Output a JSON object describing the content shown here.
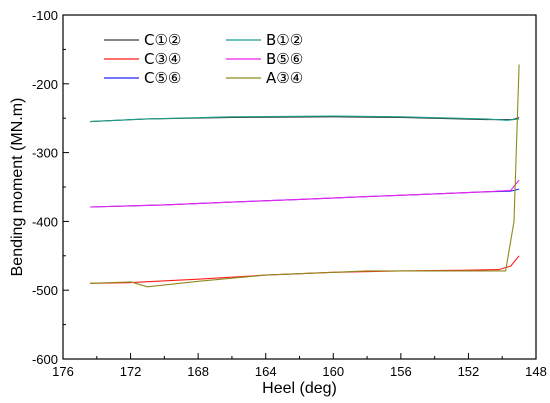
{
  "chart_data": {
    "type": "line",
    "title": "",
    "xlabel": "Heel (deg)",
    "ylabel": "Bending moment (MN.m)",
    "xlim": [
      176,
      148
    ],
    "ylim": [
      -600,
      -100
    ],
    "x_ticks": [
      "176",
      "172",
      "168",
      "164",
      "160",
      "156",
      "152",
      "148"
    ],
    "y_ticks": [
      "-100",
      "-200",
      "-300",
      "-400",
      "-500",
      "-600"
    ],
    "grid": false,
    "legend_position": "top-left",
    "series": [
      {
        "name": "C①②",
        "color": "#3a3a3a",
        "points": [
          [
            174.4,
            -255
          ],
          [
            171,
            -251
          ],
          [
            166,
            -249
          ],
          [
            160,
            -248
          ],
          [
            156,
            -249
          ],
          [
            151,
            -252
          ],
          [
            149.4,
            -252
          ],
          [
            149.0,
            -249
          ]
        ]
      },
      {
        "name": "C③④",
        "color": "#ff1a1a",
        "points": [
          [
            174.4,
            -490
          ],
          [
            172,
            -489
          ],
          [
            168,
            -484
          ],
          [
            164,
            -478
          ],
          [
            160,
            -474
          ],
          [
            156,
            -472
          ],
          [
            152,
            -471
          ],
          [
            150.2,
            -470
          ],
          [
            149.5,
            -465
          ],
          [
            149.0,
            -450
          ]
        ]
      },
      {
        "name": "C⑤⑥",
        "color": "#2020ff",
        "points": [
          [
            174.4,
            -379
          ],
          [
            170,
            -376
          ],
          [
            166,
            -372
          ],
          [
            162,
            -368
          ],
          [
            158,
            -364
          ],
          [
            154,
            -360
          ],
          [
            151,
            -357
          ],
          [
            149.5,
            -356
          ],
          [
            149.0,
            -353
          ]
        ]
      },
      {
        "name": "B①②",
        "color": "#1a9e8a",
        "points": [
          [
            174.4,
            -255
          ],
          [
            171,
            -251
          ],
          [
            166,
            -248
          ],
          [
            160,
            -247
          ],
          [
            156,
            -248
          ],
          [
            151,
            -251
          ],
          [
            149.7,
            -253
          ],
          [
            149.0,
            -251
          ]
        ]
      },
      {
        "name": "B⑤⑥",
        "color": "#ee22ee",
        "points": [
          [
            174.4,
            -379
          ],
          [
            170,
            -376
          ],
          [
            166,
            -372
          ],
          [
            162,
            -368
          ],
          [
            158,
            -364
          ],
          [
            154,
            -360
          ],
          [
            151,
            -357
          ],
          [
            149.5,
            -355
          ],
          [
            149.0,
            -340
          ]
        ]
      },
      {
        "name": "A③④",
        "color": "#8e8a1e",
        "points": [
          [
            174.4,
            -490
          ],
          [
            172,
            -488
          ],
          [
            171,
            -495
          ],
          [
            168,
            -487
          ],
          [
            164,
            -478
          ],
          [
            160,
            -474
          ],
          [
            158,
            -472
          ],
          [
            152,
            -472
          ],
          [
            149.8,
            -472
          ],
          [
            149.3,
            -400
          ],
          [
            149.0,
            -172
          ]
        ]
      }
    ]
  }
}
